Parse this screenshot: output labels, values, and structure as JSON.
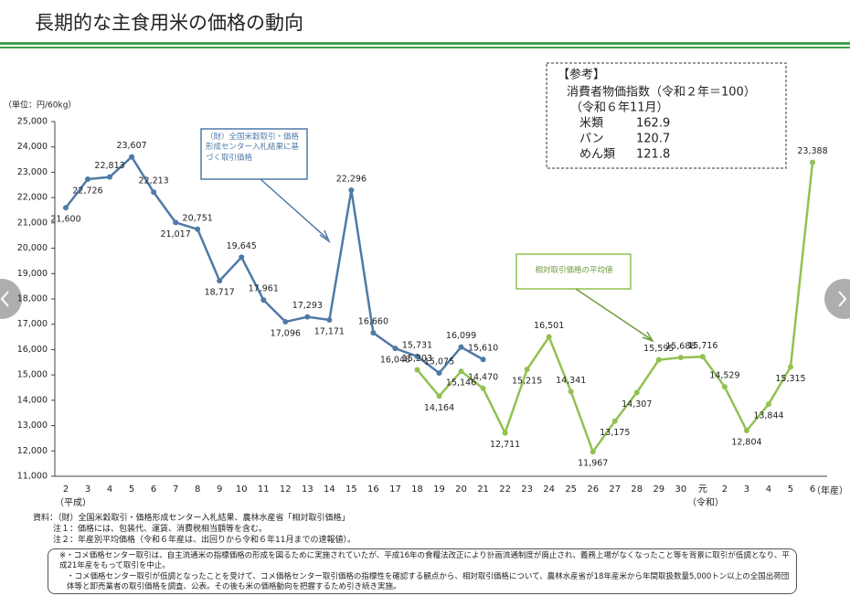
{
  "chart_data": {
    "type": "line",
    "title": "長期的な主食用米の価格の動向",
    "y_unit": "（単位：円/60kg）",
    "x_unit": "（年産）",
    "era_labels": [
      "（平成）",
      "（令和）"
    ],
    "categories": [
      "2",
      "3",
      "4",
      "5",
      "6",
      "7",
      "8",
      "9",
      "10",
      "11",
      "12",
      "13",
      "14",
      "15",
      "16",
      "17",
      "18",
      "19",
      "20",
      "21",
      "22",
      "23",
      "24",
      "25",
      "26",
      "27",
      "28",
      "29",
      "30",
      "元",
      "2",
      "3",
      "4",
      "5",
      "6"
    ],
    "ylim": [
      11000,
      25000
    ],
    "yticks": [
      {
        "value": 11000,
        "label": "11,000"
      },
      {
        "value": 12000,
        "label": "12,000"
      },
      {
        "value": 13000,
        "label": "13,000"
      },
      {
        "value": 14000,
        "label": "14,000"
      },
      {
        "value": 15000,
        "label": "15,000"
      },
      {
        "value": 16000,
        "label": "16,000"
      },
      {
        "value": 17000,
        "label": "17,000"
      },
      {
        "value": 18000,
        "label": "18,000"
      },
      {
        "value": 19000,
        "label": "19,000"
      },
      {
        "value": 20000,
        "label": "20,000"
      },
      {
        "value": 21000,
        "label": "21,000"
      },
      {
        "value": 22000,
        "label": "22,000"
      },
      {
        "value": 23000,
        "label": "23,000"
      },
      {
        "value": 24000,
        "label": "24,000"
      },
      {
        "value": 25000,
        "label": "25,000"
      }
    ],
    "grid": false,
    "series": [
      {
        "name": "（財）全国米穀取引・価格形成センター入札結果に基づく取引価格",
        "color": "#4f7aa6",
        "values": [
          21600,
          22726,
          22813,
          23607,
          22213,
          21017,
          20751,
          18717,
          19645,
          17961,
          17096,
          17293,
          17171,
          22296,
          16660,
          16048,
          15731,
          15075,
          16099,
          15610,
          null,
          null,
          null,
          null,
          null,
          null,
          null,
          null,
          null,
          null,
          null,
          null,
          null,
          null,
          null
        ],
        "value_labels": [
          "21,600",
          "22,726",
          "22,813",
          "23,607",
          "22,213",
          "21,017",
          "20,751",
          "18,717",
          "19,645",
          "17,961",
          "17,096",
          "17,293",
          "17,171",
          "22,296",
          "16,660",
          "16,048",
          "15,731",
          "15,075",
          "16,099",
          "15,610",
          null,
          null,
          null,
          null,
          null,
          null,
          null,
          null,
          null,
          null,
          null,
          null,
          null,
          null,
          null
        ]
      },
      {
        "name": "相対取引価格の平均値",
        "color": "#92c152",
        "values": [
          null,
          null,
          null,
          null,
          null,
          null,
          null,
          null,
          null,
          null,
          null,
          null,
          null,
          null,
          null,
          null,
          15203,
          14164,
          15146,
          14470,
          12711,
          15215,
          16501,
          14341,
          11967,
          13175,
          14307,
          15595,
          15688,
          15716,
          14529,
          12804,
          13844,
          15315,
          23388
        ],
        "value_labels": [
          null,
          null,
          null,
          null,
          null,
          null,
          null,
          null,
          null,
          null,
          null,
          null,
          null,
          null,
          null,
          null,
          "15,203",
          "14,164",
          "15,146",
          "14,470",
          "12,711",
          "15,215",
          "16,501",
          "14,341",
          "11,967",
          "13,175",
          "14,307",
          "15,595",
          "15,688",
          "15,716",
          "14,529",
          "12,804",
          "13,844",
          "15,315",
          "23,388"
        ]
      }
    ]
  },
  "reference": {
    "heading": "【参考】",
    "line1": "消費者物価指数（令和２年＝100）",
    "line2": "（令和６年11月）",
    "rows": [
      [
        "米類",
        "162.9"
      ],
      [
        "パン",
        "120.7"
      ],
      [
        "めん類",
        "121.8"
      ]
    ]
  },
  "notes": {
    "source": "資料：（財）全国米穀取引・価格形成センター入札結果、農林水産省「相対取引価格」",
    "note1": "注１：価格には、包装代、運賃、消費税相当額等を含む。",
    "note2": "注２：年産別平均価格（令和６年産は、出回りから令和６年11月までの速報値）。",
    "box1": "※・コメ価格センター取引は、自主流通米の指標価格の形成を図るために実施されていたが、平成16年の食糧法改正により計画流通制度が廃止され、義務上場がなくなったこと等を背景に取引が低調となり、平成21年産をもって取引を中止。",
    "box2": "・コメ価格センター取引が低調となったことを受けて、コメ価格センター取引価格の指標性を確認する観点から、相対取引価格について、農林水産省が18年産米から年間取扱数量5,000トン以上の全国出荷団体等と卸売業者の取引価格を調査、公表。その後も米の価格動向を把握するため引き続き実施。"
  }
}
